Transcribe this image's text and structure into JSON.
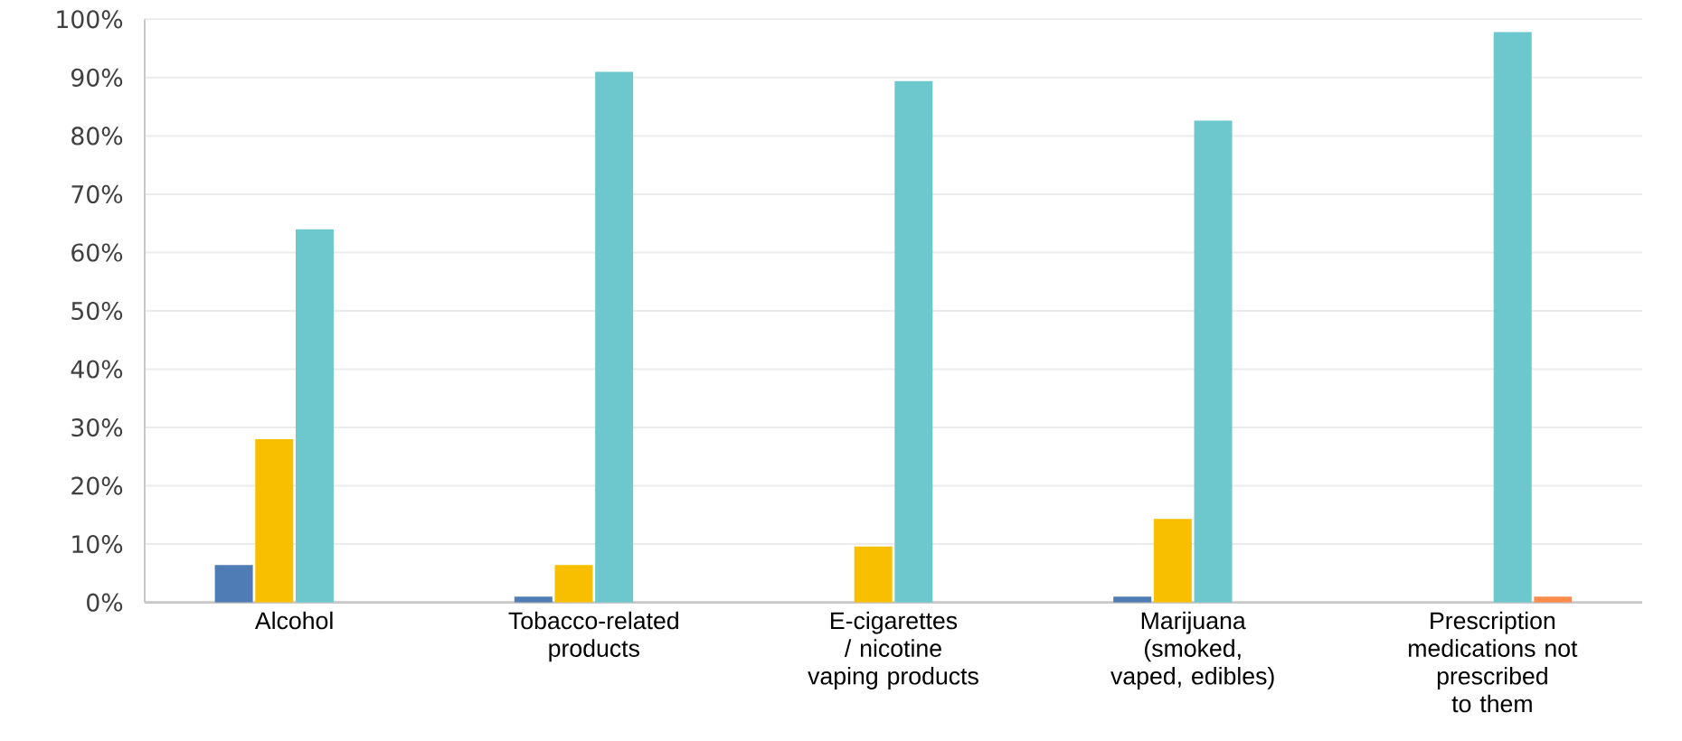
{
  "chart_data": {
    "type": "bar",
    "categories": [
      "Alcohol",
      "Tobacco-related products",
      "E-cigarettes / nicotine vaping products",
      "Marijuana (smoked, vaped, edibles)",
      "Prescription medications not prescribed to them"
    ],
    "series": [
      {
        "color": "#4f7cb5",
        "values": [
          6.4,
          1,
          0,
          1,
          0
        ]
      },
      {
        "color": "#f8bf00",
        "values": [
          28,
          6.4,
          9.6,
          14.3,
          0
        ]
      },
      {
        "color": "#6cc8cc",
        "values": [
          64,
          91,
          89.4,
          82.6,
          97.8
        ]
      },
      {
        "color": "#ff8c4a",
        "values": [
          0,
          0,
          0,
          0,
          1
        ]
      }
    ],
    "ylim": [
      0,
      100
    ],
    "yticks": [
      {
        "value": 0,
        "label": "0%"
      },
      {
        "value": 10,
        "label": "10%"
      },
      {
        "value": 20,
        "label": "20%"
      },
      {
        "value": 30,
        "label": "30%"
      },
      {
        "value": 40,
        "label": "40%"
      },
      {
        "value": 50,
        "label": "50%"
      },
      {
        "value": 60,
        "label": "60%"
      },
      {
        "value": 70,
        "label": "70%"
      },
      {
        "value": 80,
        "label": "80%"
      },
      {
        "value": 90,
        "label": "90%"
      },
      {
        "value": 100,
        "label": "100%"
      }
    ],
    "grid": "y"
  }
}
